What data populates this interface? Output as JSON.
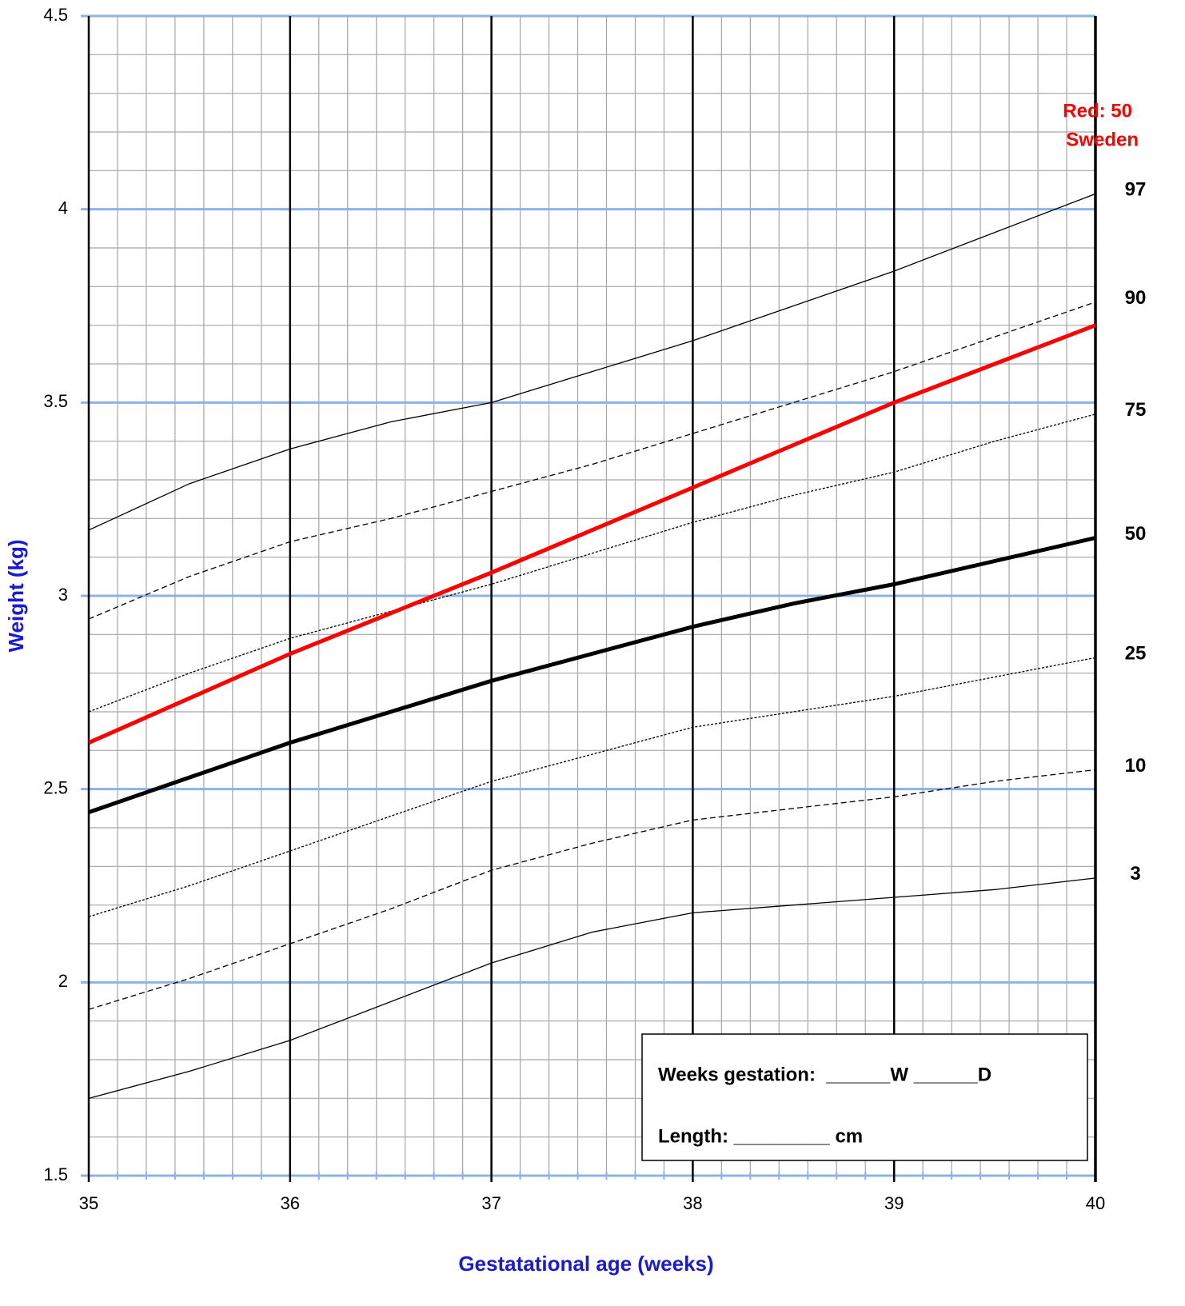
{
  "chart_data": {
    "type": "line",
    "x_label": "Gestatational age (weeks)",
    "y_label": "Weight (kg)",
    "x": [
      35,
      35.5,
      36,
      36.5,
      37,
      37.5,
      38,
      38.5,
      39,
      39.5,
      40
    ],
    "xlim": [
      35,
      40
    ],
    "xticks": [
      35,
      36,
      37,
      38,
      39,
      40
    ],
    "ylim": [
      1.5,
      4.5
    ],
    "yticks": [
      1.5,
      2,
      2.5,
      3,
      3.5,
      4,
      4.5
    ],
    "grid": true,
    "series": [
      {
        "name": "97",
        "color": "#000000",
        "line_style": "solid-thin",
        "values": [
          3.17,
          3.29,
          3.38,
          3.45,
          3.5,
          3.58,
          3.66,
          3.75,
          3.84,
          3.94,
          4.04
        ]
      },
      {
        "name": "90",
        "color": "#000000",
        "line_style": "dashed",
        "values": [
          2.94,
          3.05,
          3.14,
          3.2,
          3.27,
          3.34,
          3.42,
          3.5,
          3.58,
          3.67,
          3.76
        ]
      },
      {
        "name": "75",
        "color": "#000000",
        "line_style": "dotted",
        "values": [
          2.7,
          2.8,
          2.89,
          2.96,
          3.03,
          3.11,
          3.19,
          3.26,
          3.32,
          3.4,
          3.47
        ]
      },
      {
        "name": "50",
        "color": "#000000",
        "line_style": "solid-thick",
        "values": [
          2.44,
          2.53,
          2.62,
          2.7,
          2.78,
          2.85,
          2.92,
          2.98,
          3.03,
          3.09,
          3.15
        ]
      },
      {
        "name": "25",
        "color": "#000000",
        "line_style": "dotted",
        "values": [
          2.17,
          2.25,
          2.34,
          2.43,
          2.52,
          2.59,
          2.66,
          2.7,
          2.74,
          2.79,
          2.84
        ]
      },
      {
        "name": "10",
        "color": "#000000",
        "line_style": "dashed",
        "values": [
          1.93,
          2.01,
          2.1,
          2.19,
          2.29,
          2.36,
          2.42,
          2.45,
          2.48,
          2.52,
          2.55
        ]
      },
      {
        "name": "3",
        "color": "#000000",
        "line_style": "solid-thin",
        "values": [
          1.7,
          1.77,
          1.85,
          1.95,
          2.05,
          2.13,
          2.18,
          2.2,
          2.22,
          2.24,
          2.27
        ]
      },
      {
        "name": "Red: 50",
        "color": "#ff0000",
        "line_style": "solid-thick",
        "values": [
          2.62,
          2.735,
          2.85,
          2.955,
          3.06,
          3.17,
          3.28,
          3.39,
          3.5,
          3.6,
          3.7
        ]
      }
    ],
    "annotations": [
      "Sweden"
    ],
    "form_lines": [
      "Weeks gestation:  ______W ______D",
      "Length: _________ cm"
    ]
  }
}
